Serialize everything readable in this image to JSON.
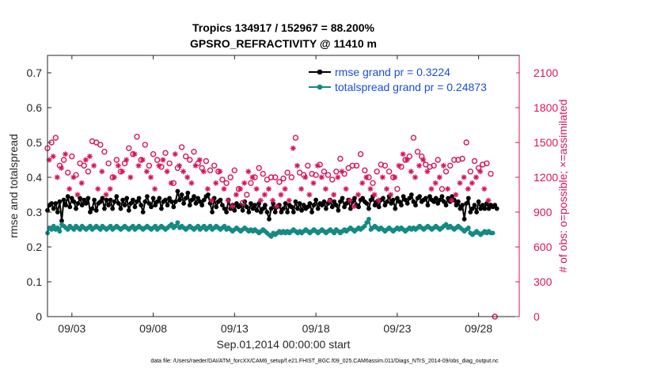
{
  "chart_data": {
    "type": "line",
    "title_line1": "Tropics 134917 / 152967 = 88.200%",
    "title_line2": "GPSRO_REFRACTIVITY @ 11410 m",
    "xlabel": "Sep.01,2014 00:00:00 start",
    "ylabel_left": "rmse and totalspread",
    "ylabel_right": "# of obs: o=possible; ×=assimilated",
    "footnote": "data file: /Users/raeder/DAI/ATM_forcXX/CAM6_setup/f.e21.FHIST_BGC.f09_025.CAM6assim.011/Diags_NTrS_2014-09/obs_diag_output.nc",
    "xlim_days": [
      1.5,
      30.5
    ],
    "ylim_left": [
      0,
      0.75
    ],
    "ylim_right": [
      0,
      2250
    ],
    "x_ticks": [
      {
        "day": 3,
        "label": "09/03"
      },
      {
        "day": 8,
        "label": "09/08"
      },
      {
        "day": 13,
        "label": "09/13"
      },
      {
        "day": 18,
        "label": "09/18"
      },
      {
        "day": 23,
        "label": "09/23"
      },
      {
        "day": 28,
        "label": "09/28"
      }
    ],
    "y_ticks_left": [
      "0",
      "0.1",
      "0.2",
      "0.3",
      "0.4",
      "0.5",
      "0.6",
      "0.7"
    ],
    "y_ticks_right": [
      "0",
      "300",
      "600",
      "900",
      "1200",
      "1500",
      "1800",
      "2100"
    ],
    "legend": [
      {
        "label": "rmse grand pr = 0.3224",
        "color": "#000000"
      },
      {
        "label": "totalspread grand pr = 0.24873",
        "color": "#138a85"
      }
    ],
    "colors": {
      "rmse": "#000000",
      "totalspread": "#138a85",
      "obs": "#d6155e",
      "legend_text": "#1a4ed8"
    },
    "series": [
      {
        "name": "rmse",
        "axis": "left",
        "start_day": 1.5,
        "step_days": 0.125,
        "values": [
          0.305,
          0.32,
          0.325,
          0.31,
          0.325,
          0.3,
          0.33,
          0.275,
          0.335,
          0.32,
          0.345,
          0.315,
          0.34,
          0.33,
          0.31,
          0.325,
          0.34,
          0.32,
          0.335,
          0.325,
          0.34,
          0.3,
          0.31,
          0.335,
          0.305,
          0.325,
          0.33,
          0.34,
          0.31,
          0.335,
          0.32,
          0.335,
          0.31,
          0.33,
          0.345,
          0.325,
          0.31,
          0.335,
          0.32,
          0.34,
          0.305,
          0.325,
          0.335,
          0.315,
          0.33,
          0.34,
          0.32,
          0.3,
          0.33,
          0.345,
          0.325,
          0.315,
          0.34,
          0.32,
          0.33,
          0.34,
          0.31,
          0.33,
          0.335,
          0.32,
          0.34,
          0.33,
          0.315,
          0.33,
          0.36,
          0.335,
          0.35,
          0.325,
          0.34,
          0.355,
          0.32,
          0.335,
          0.345,
          0.325,
          0.34,
          0.33,
          0.32,
          0.335,
          0.345,
          0.35,
          0.325,
          0.3,
          0.34,
          0.315,
          0.33,
          0.335,
          0.32,
          0.31,
          0.3,
          0.335,
          0.31,
          0.32,
          0.305,
          0.325,
          0.315,
          0.32,
          0.305,
          0.33,
          0.315,
          0.3,
          0.325,
          0.31,
          0.32,
          0.305,
          0.325,
          0.3,
          0.31,
          0.32,
          0.3,
          0.28,
          0.31,
          0.325,
          0.3,
          0.315,
          0.32,
          0.3,
          0.31,
          0.325,
          0.3,
          0.32,
          0.315,
          0.3,
          0.33,
          0.31,
          0.325,
          0.305,
          0.32,
          0.31,
          0.315,
          0.325,
          0.3,
          0.32,
          0.335,
          0.31,
          0.325,
          0.32,
          0.33,
          0.31,
          0.325,
          0.335,
          0.315,
          0.33,
          0.32,
          0.305,
          0.33,
          0.34,
          0.315,
          0.325,
          0.335,
          0.31,
          0.33,
          0.34,
          0.32,
          0.315,
          0.335,
          0.34,
          0.33,
          0.325,
          0.31,
          0.335,
          0.345,
          0.32,
          0.33,
          0.315,
          0.335,
          0.34,
          0.32,
          0.33,
          0.345,
          0.325,
          0.335,
          0.31,
          0.34,
          0.33,
          0.32,
          0.345,
          0.335,
          0.325,
          0.34,
          0.35,
          0.33,
          0.32,
          0.34,
          0.345,
          0.33,
          0.335,
          0.34,
          0.32,
          0.345,
          0.335,
          0.33,
          0.34,
          0.325,
          0.335,
          0.345,
          0.33,
          0.32,
          0.34,
          0.33,
          0.345,
          0.335,
          0.32,
          0.33,
          0.31,
          0.32,
          0.28,
          0.325,
          0.34,
          0.3,
          0.31,
          0.32,
          0.3,
          0.33,
          0.31,
          0.32,
          0.31,
          0.325,
          0.31,
          0.32,
          0.315,
          0.32,
          0.31
        ]
      },
      {
        "name": "totalspread",
        "axis": "left",
        "start_day": 1.5,
        "step_days": 0.125,
        "values": [
          0.24,
          0.255,
          0.25,
          0.26,
          0.25,
          0.255,
          0.245,
          0.265,
          0.26,
          0.255,
          0.25,
          0.26,
          0.255,
          0.25,
          0.26,
          0.255,
          0.25,
          0.26,
          0.255,
          0.25,
          0.255,
          0.26,
          0.25,
          0.255,
          0.26,
          0.255,
          0.25,
          0.26,
          0.255,
          0.25,
          0.255,
          0.26,
          0.25,
          0.255,
          0.26,
          0.255,
          0.25,
          0.255,
          0.26,
          0.255,
          0.25,
          0.255,
          0.26,
          0.25,
          0.255,
          0.26,
          0.255,
          0.25,
          0.255,
          0.26,
          0.255,
          0.25,
          0.255,
          0.26,
          0.25,
          0.255,
          0.26,
          0.255,
          0.25,
          0.255,
          0.26,
          0.265,
          0.255,
          0.26,
          0.27,
          0.255,
          0.26,
          0.255,
          0.25,
          0.255,
          0.26,
          0.255,
          0.25,
          0.255,
          0.26,
          0.25,
          0.255,
          0.26,
          0.25,
          0.255,
          0.26,
          0.25,
          0.255,
          0.26,
          0.255,
          0.25,
          0.255,
          0.26,
          0.25,
          0.255,
          0.25,
          0.245,
          0.25,
          0.255,
          0.25,
          0.245,
          0.25,
          0.255,
          0.25,
          0.245,
          0.25,
          0.245,
          0.25,
          0.245,
          0.24,
          0.245,
          0.25,
          0.245,
          0.24,
          0.235,
          0.23,
          0.24,
          0.235,
          0.24,
          0.245,
          0.24,
          0.245,
          0.24,
          0.245,
          0.24,
          0.245,
          0.25,
          0.245,
          0.24,
          0.245,
          0.24,
          0.245,
          0.25,
          0.245,
          0.24,
          0.245,
          0.25,
          0.245,
          0.24,
          0.245,
          0.25,
          0.245,
          0.24,
          0.245,
          0.25,
          0.245,
          0.24,
          0.25,
          0.245,
          0.24,
          0.245,
          0.25,
          0.245,
          0.25,
          0.255,
          0.25,
          0.245,
          0.25,
          0.255,
          0.25,
          0.255,
          0.26,
          0.27,
          0.28,
          0.25,
          0.255,
          0.26,
          0.255,
          0.25,
          0.255,
          0.25,
          0.245,
          0.25,
          0.255,
          0.25,
          0.245,
          0.25,
          0.255,
          0.25,
          0.255,
          0.25,
          0.245,
          0.25,
          0.255,
          0.25,
          0.255,
          0.25,
          0.255,
          0.26,
          0.255,
          0.25,
          0.255,
          0.26,
          0.255,
          0.25,
          0.255,
          0.26,
          0.255,
          0.25,
          0.255,
          0.26,
          0.265,
          0.255,
          0.26,
          0.255,
          0.25,
          0.255,
          0.26,
          0.255,
          0.25,
          0.245,
          0.25,
          0.255,
          0.24,
          0.235,
          0.24,
          0.245,
          0.24,
          0.235,
          0.24,
          0.245,
          0.24,
          0.245,
          0.24,
          0.24
        ]
      },
      {
        "name": "obs_possible",
        "axis": "right",
        "marker": "o",
        "start_day": 1.5,
        "step_days": 0.25,
        "values": [
          1450,
          1500,
          1540,
          1300,
          1350,
          1240,
          1380,
          1220,
          1320,
          1300,
          1250,
          1510,
          1500,
          1480,
          1420,
          1320,
          1200,
          1350,
          1250,
          1320,
          1450,
          1400,
          1550,
          1350,
          1480,
          1300,
          1400,
          1350,
          1290,
          1410,
          1320,
          1150,
          1280,
          1460,
          1380,
          1350,
          1420,
          1320,
          1280,
          1340,
          1260,
          1300,
          1250,
          1180,
          1150,
          1200,
          1260,
          1100,
          980,
          1050,
          1150,
          1200,
          1280,
          1230,
          1180,
          1200,
          1200,
          1160,
          1190,
          1240,
          1200,
          1540,
          1240,
          1220,
          1300,
          1230,
          1220,
          1310,
          1250,
          1220,
          1180,
          1250,
          1360,
          1230,
          1280,
          1300,
          1300,
          1400,
          1260,
          1200,
          1150,
          1250,
          1310,
          1300,
          1250,
          1200,
          1100,
          1290,
          1350,
          1380,
          1540,
          1420,
          1380,
          1310,
          1290,
          1300,
          1350,
          1100,
          1250,
          1300,
          1350,
          1350,
          1360,
          1500,
          1250,
          1340,
          1280,
          1310,
          1320,
          1230,
          0
        ]
      },
      {
        "name": "obs_assimilated",
        "axis": "right",
        "marker": "*",
        "start_day": 1.6,
        "step_days": 0.25,
        "values": [
          1350,
          1380,
          1200,
          1280,
          1400,
          1100,
          1200,
          1050,
          1150,
          1350,
          1380,
          1300,
          1100,
          1250,
          1050,
          1100,
          1200,
          1300,
          1250,
          1350,
          1200,
          1400,
          1300,
          1350,
          1250,
          1200,
          1100,
          1300,
          1350,
          1250,
          1150,
          1400,
          1300,
          1250,
          1200,
          1150,
          1300,
          1350,
          1250,
          1100,
          1000,
          1150,
          1250,
          1100,
          1000,
          950,
          1050,
          1100,
          1150,
          1250,
          1200,
          1100,
          1000,
          1050,
          1100,
          1000,
          950,
          1050,
          1100,
          1000,
          1450,
          1300,
          1100,
          1200,
          1050,
          1150,
          1300,
          1200,
          1100,
          1000,
          1050,
          1200,
          1250,
          1100,
          1000,
          950,
          1050,
          1150,
          1200,
          1100,
          1050,
          1000,
          1200,
          1100,
          1050,
          1200,
          1300,
          1400,
          1350,
          1250,
          1200,
          1300,
          1350,
          1250,
          1100,
          1150,
          1200,
          1300,
          1100,
          1000,
          1050,
          1150,
          1200,
          1100,
          1150,
          1200,
          1250,
          1100,
          1000
        ]
      }
    ]
  }
}
